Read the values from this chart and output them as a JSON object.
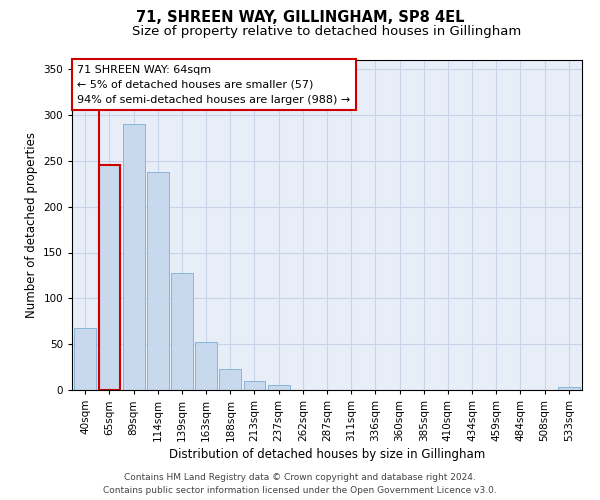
{
  "title1": "71, SHREEN WAY, GILLINGHAM, SP8 4EL",
  "title2": "Size of property relative to detached houses in Gillingham",
  "xlabel": "Distribution of detached houses by size in Gillingham",
  "ylabel": "Number of detached properties",
  "categories": [
    "40sqm",
    "65sqm",
    "89sqm",
    "114sqm",
    "139sqm",
    "163sqm",
    "188sqm",
    "213sqm",
    "237sqm",
    "262sqm",
    "287sqm",
    "311sqm",
    "336sqm",
    "360sqm",
    "385sqm",
    "410sqm",
    "434sqm",
    "459sqm",
    "484sqm",
    "508sqm",
    "533sqm"
  ],
  "values": [
    68,
    245,
    290,
    238,
    128,
    52,
    23,
    10,
    5,
    0,
    0,
    0,
    0,
    0,
    0,
    0,
    0,
    0,
    0,
    0,
    3
  ],
  "bar_color": "#c9d9ed",
  "bar_edge_color": "#7bafd4",
  "highlight_edge_color": "#cc0000",
  "annotation_box_text": "71 SHREEN WAY: 64sqm\n← 5% of detached houses are smaller (57)\n94% of semi-detached houses are larger (988) →",
  "box_edge_color": "#cc0000",
  "ylim": [
    0,
    360
  ],
  "yticks": [
    0,
    50,
    100,
    150,
    200,
    250,
    300,
    350
  ],
  "footer_line1": "Contains HM Land Registry data © Crown copyright and database right 2024.",
  "footer_line2": "Contains public sector information licensed under the Open Government Licence v3.0.",
  "bg_color": "#ffffff",
  "plot_bg_color": "#e8eef8",
  "grid_color": "#c8d4e8",
  "title1_fontsize": 10.5,
  "title2_fontsize": 9.5,
  "xlabel_fontsize": 8.5,
  "ylabel_fontsize": 8.5,
  "tick_fontsize": 7.5,
  "annotation_fontsize": 8,
  "footer_fontsize": 6.5
}
